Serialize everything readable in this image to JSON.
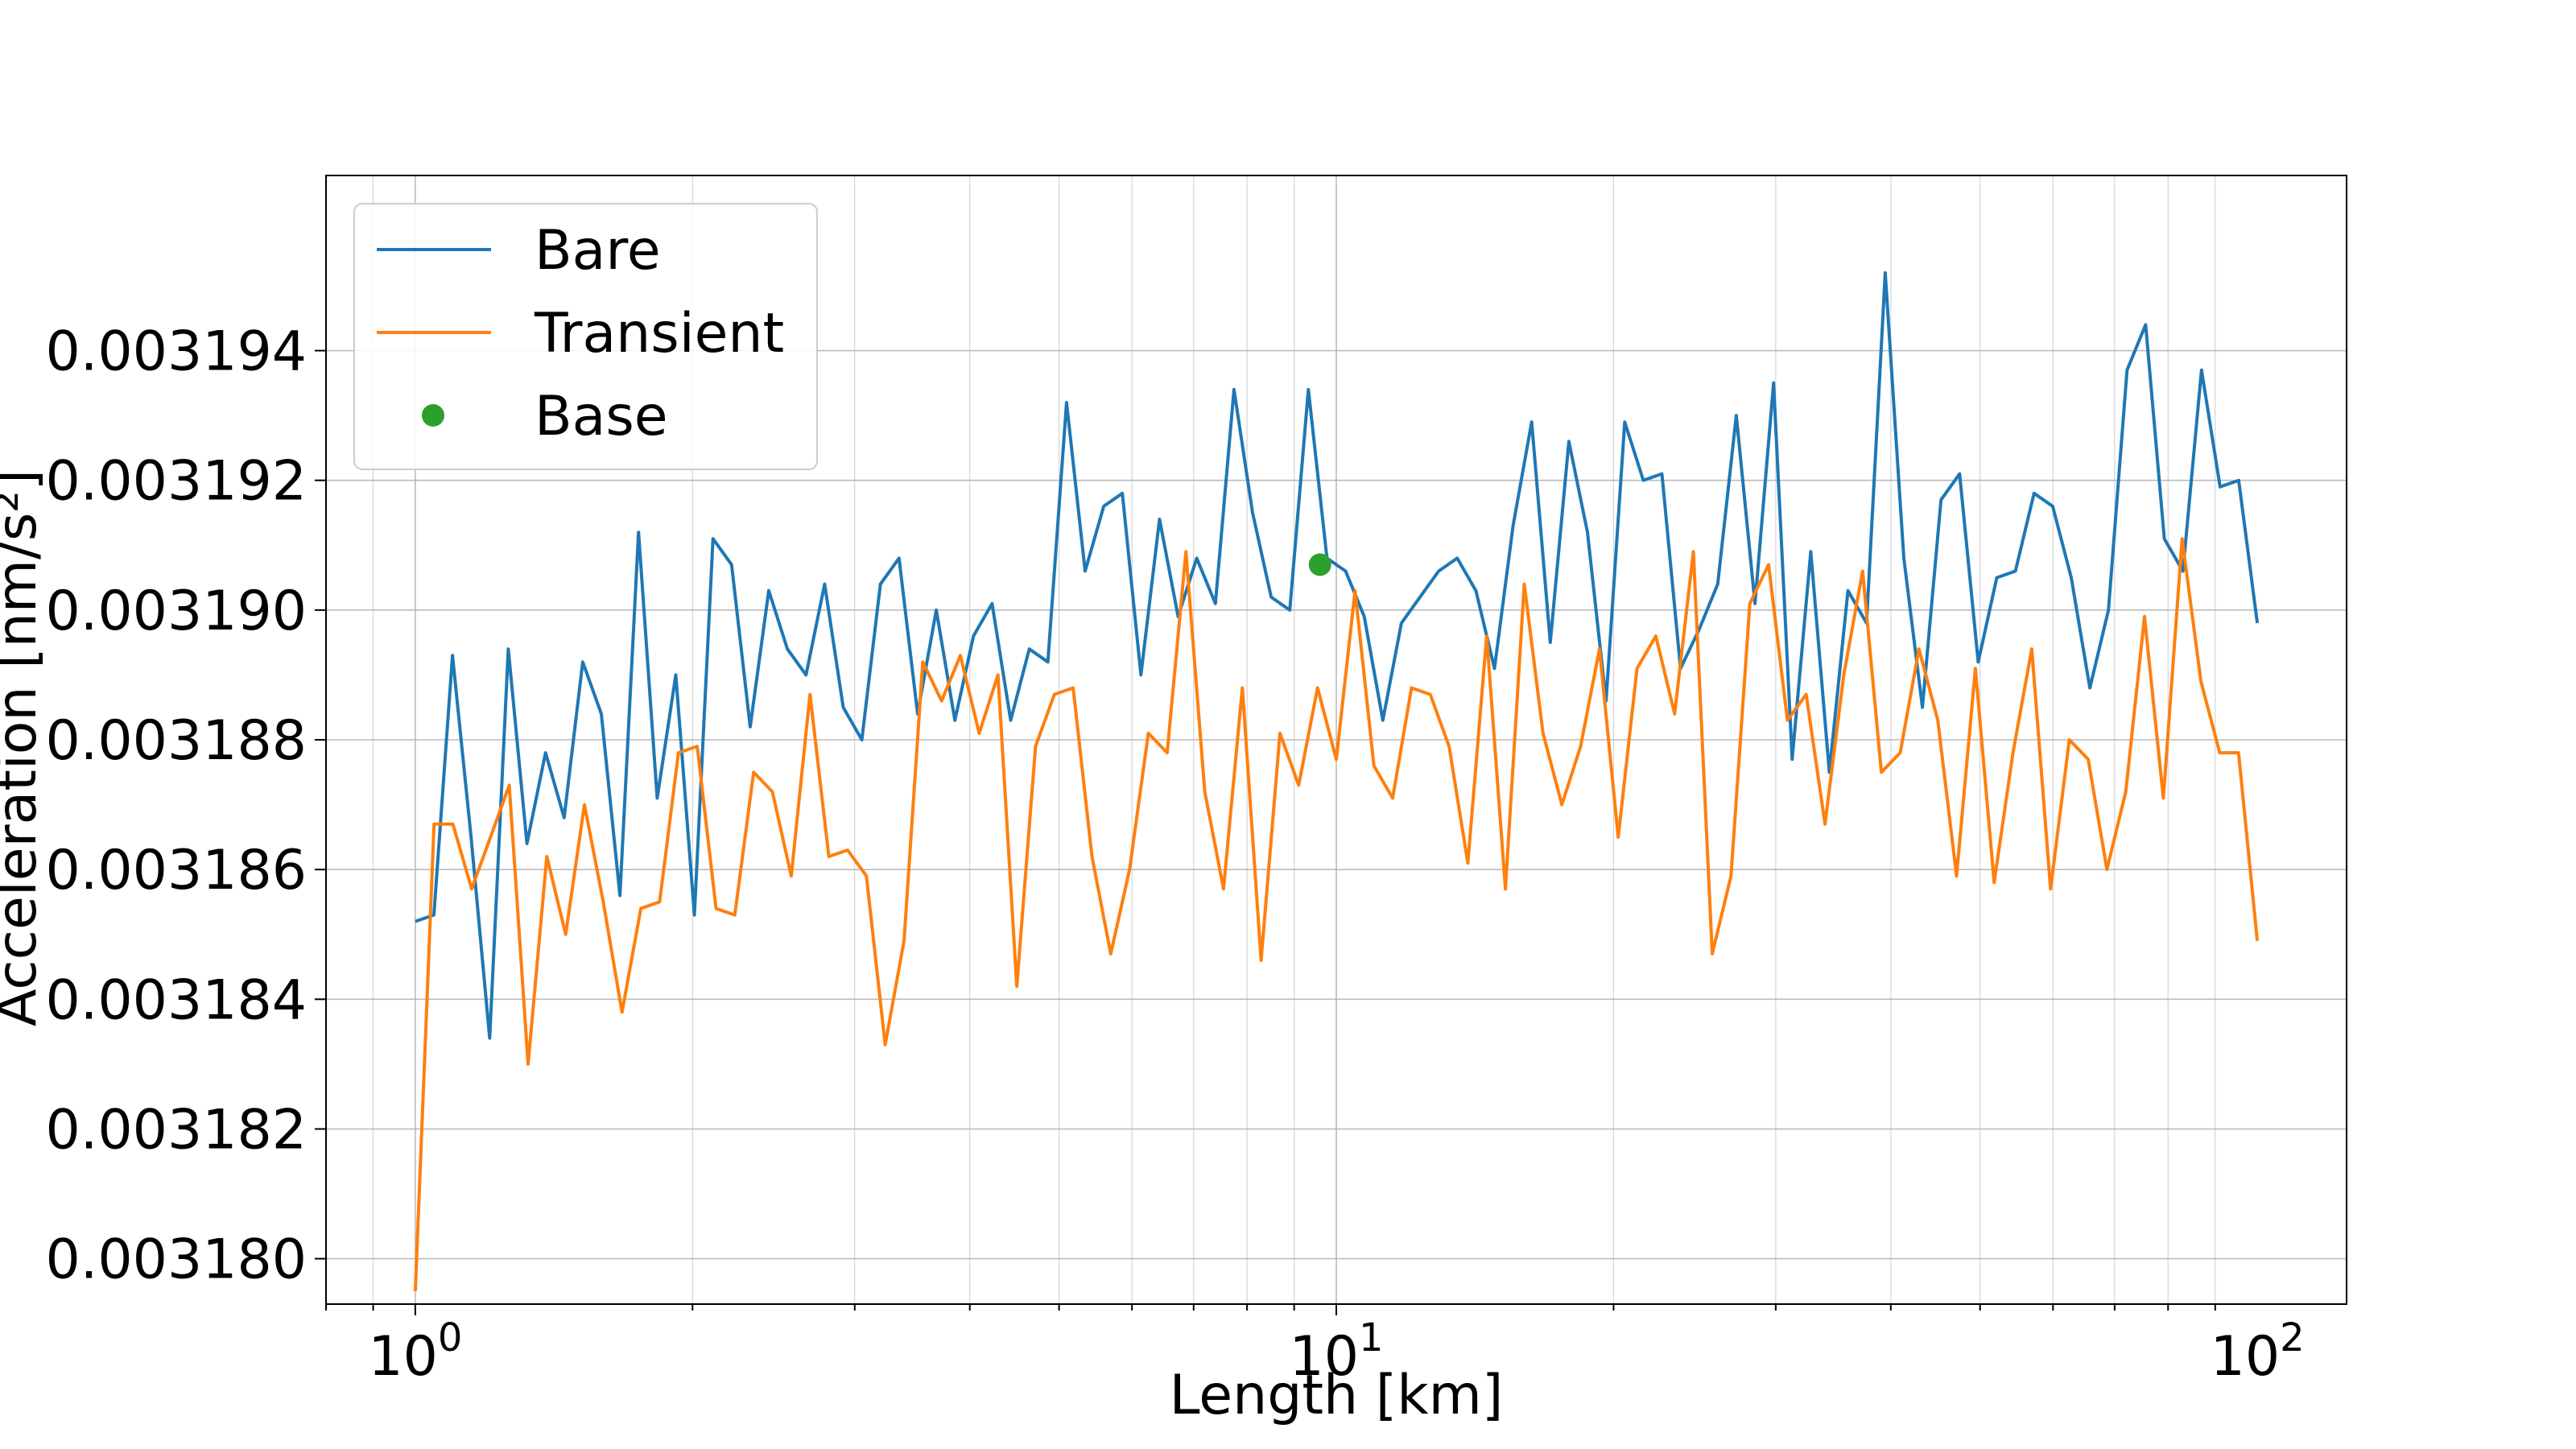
{
  "chart_data": {
    "type": "line",
    "title": "",
    "xlabel": "Length [km]",
    "ylabel": "Acceleration [nm/s²]",
    "xscale": "log",
    "xlim": [
      0.8,
      125
    ],
    "ylim": [
      0.0031793,
      0.0031967
    ],
    "x_ticks": [
      {
        "value": 1,
        "base": "10",
        "exp": "0"
      },
      {
        "value": 10,
        "base": "10",
        "exp": "1"
      },
      {
        "value": 100,
        "base": "10",
        "exp": "2"
      }
    ],
    "y_ticks": [
      {
        "value": 0.00318,
        "label": "0.003180"
      },
      {
        "value": 0.003182,
        "label": "0.003182"
      },
      {
        "value": 0.003184,
        "label": "0.003184"
      },
      {
        "value": 0.003186,
        "label": "0.003186"
      },
      {
        "value": 0.003188,
        "label": "0.003188"
      },
      {
        "value": 0.00319,
        "label": "0.003190"
      },
      {
        "value": 0.003192,
        "label": "0.003192"
      },
      {
        "value": 0.003194,
        "label": "0.003194"
      }
    ],
    "grid": true,
    "legend": {
      "placement": "top-left"
    },
    "x_log_start": 0,
    "x_log_end": 2,
    "series": [
      {
        "name": "Bare",
        "color": "#1f77b4",
        "values": [
          0.0031852,
          0.0031853,
          0.0031893,
          0.0031865,
          0.0031834,
          0.0031894,
          0.0031864,
          0.0031878,
          0.0031868,
          0.0031892,
          0.0031884,
          0.0031856,
          0.0031912,
          0.0031871,
          0.003189,
          0.0031853,
          0.0031911,
          0.0031907,
          0.0031882,
          0.0031903,
          0.0031894,
          0.003189,
          0.0031904,
          0.0031885,
          0.003188,
          0.0031904,
          0.0031908,
          0.0031884,
          0.00319,
          0.0031883,
          0.0031896,
          0.0031901,
          0.0031883,
          0.0031894,
          0.0031892,
          0.0031932,
          0.0031906,
          0.0031916,
          0.0031918,
          0.003189,
          0.0031914,
          0.0031899,
          0.0031908,
          0.0031901,
          0.0031934,
          0.0031915,
          0.0031902,
          0.00319,
          0.0031934,
          0.0031908,
          0.0031906,
          0.0031899,
          0.0031883,
          0.0031898,
          0.0031902,
          0.0031906,
          0.0031908,
          0.0031903,
          0.0031891,
          0.0031913,
          0.0031929,
          0.0031895,
          0.0031926,
          0.0031912,
          0.0031886,
          0.0031929,
          0.003192,
          0.0031921,
          0.0031891,
          0.0031897,
          0.0031904,
          0.003193,
          0.0031901,
          0.0031935,
          0.0031877,
          0.0031909,
          0.0031875,
          0.0031903,
          0.0031898,
          0.0031952,
          0.0031908,
          0.0031885,
          0.0031917,
          0.0031921,
          0.0031892,
          0.0031905,
          0.0031906,
          0.0031918,
          0.0031916,
          0.0031905,
          0.0031888,
          0.00319,
          0.0031937,
          0.0031944,
          0.0031911,
          0.0031906,
          0.0031937,
          0.0031919,
          0.003192,
          0.0031898
        ]
      },
      {
        "name": "Transient",
        "color": "#ff7f0e",
        "values": [
          0.0031795,
          0.0031867,
          0.0031867,
          0.0031857,
          0.0031865,
          0.0031873,
          0.003183,
          0.0031862,
          0.003185,
          0.003187,
          0.0031855,
          0.0031838,
          0.0031854,
          0.0031855,
          0.0031878,
          0.0031879,
          0.0031854,
          0.0031853,
          0.0031875,
          0.0031872,
          0.0031859,
          0.0031887,
          0.0031862,
          0.0031863,
          0.0031859,
          0.0031833,
          0.0031849,
          0.0031892,
          0.0031886,
          0.0031893,
          0.0031881,
          0.003189,
          0.0031842,
          0.0031879,
          0.0031887,
          0.0031888,
          0.0031862,
          0.0031847,
          0.003186,
          0.0031881,
          0.0031878,
          0.0031909,
          0.0031872,
          0.0031857,
          0.0031888,
          0.0031846,
          0.0031881,
          0.0031873,
          0.0031888,
          0.0031877,
          0.0031903,
          0.0031876,
          0.0031871,
          0.0031888,
          0.0031887,
          0.0031879,
          0.0031861,
          0.0031896,
          0.0031857,
          0.0031904,
          0.0031881,
          0.003187,
          0.0031879,
          0.0031894,
          0.0031865,
          0.0031891,
          0.0031896,
          0.0031884,
          0.0031909,
          0.0031847,
          0.0031859,
          0.0031901,
          0.0031907,
          0.0031883,
          0.0031887,
          0.0031867,
          0.003189,
          0.0031906,
          0.0031875,
          0.0031878,
          0.0031894,
          0.0031883,
          0.0031859,
          0.0031891,
          0.0031858,
          0.0031878,
          0.0031894,
          0.0031857,
          0.003188,
          0.0031877,
          0.003186,
          0.0031872,
          0.0031899,
          0.0031871,
          0.0031911,
          0.0031889,
          0.0031878,
          0.0031878,
          0.0031849
        ]
      },
      {
        "name": "Base",
        "type": "scatter",
        "color": "#2ca02c",
        "points": [
          {
            "x": 9.6,
            "y": 0.0031907
          }
        ]
      }
    ]
  }
}
